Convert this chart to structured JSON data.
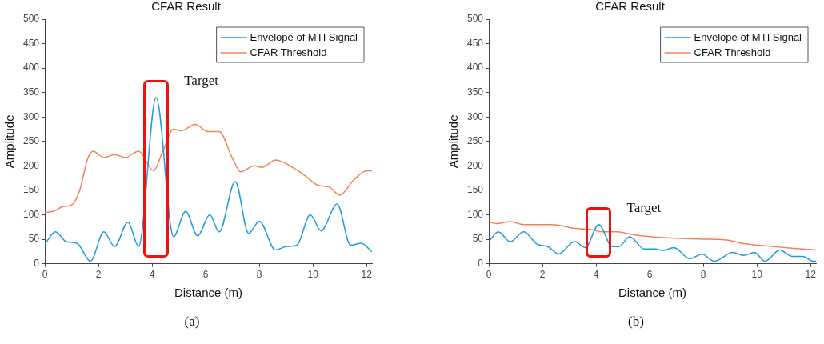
{
  "chart_data": [
    {
      "type": "line",
      "title": "CFAR Result",
      "xlabel": "Distance (m)",
      "ylabel": "Amplitude",
      "xlim": [
        0,
        12.2
      ],
      "xticks": [
        0,
        2,
        4,
        6,
        8,
        10,
        12
      ],
      "ylim": [
        0,
        500
      ],
      "yticks": [
        0,
        50,
        100,
        150,
        200,
        250,
        300,
        350,
        400,
        450,
        500
      ],
      "grid": false,
      "legend": "top right",
      "marker": "none",
      "line_style": "solid",
      "series": [
        {
          "name": "Envelope of MTI Signal",
          "color": "#1f9bd7",
          "x": [
            0,
            0.4,
            0.8,
            1.2,
            1.7,
            2.2,
            2.6,
            3.1,
            3.5,
            4.15,
            4.8,
            5.25,
            5.7,
            6.15,
            6.5,
            7.1,
            7.6,
            8.0,
            8.6,
            9.0,
            9.4,
            9.9,
            10.3,
            10.9,
            11.4,
            11.8,
            12.2
          ],
          "values": [
            40,
            65,
            45,
            42,
            5,
            65,
            35,
            85,
            35,
            340,
            55,
            107,
            57,
            100,
            65,
            168,
            62,
            87,
            28,
            35,
            38,
            100,
            67,
            122,
            38,
            42,
            24
          ]
        },
        {
          "name": "CFAR Threshold",
          "color": "#f4805a",
          "x": [
            0,
            0.3,
            0.7,
            1.0,
            1.3,
            1.6,
            1.8,
            2.2,
            2.6,
            3.0,
            3.5,
            4.05,
            4.4,
            4.8,
            5.1,
            5.6,
            6.1,
            6.5,
            7.0,
            7.3,
            7.8,
            8.1,
            8.6,
            9.3,
            9.7,
            10.2,
            10.6,
            11.0,
            11.5,
            12.0,
            12.2
          ],
          "values": [
            105,
            107,
            117,
            120,
            150,
            215,
            230,
            217,
            223,
            217,
            230,
            190,
            230,
            275,
            272,
            285,
            270,
            270,
            215,
            188,
            200,
            197,
            212,
            195,
            180,
            160,
            157,
            140,
            170,
            190,
            190
          ]
        }
      ],
      "annotations": [
        {
          "text": "Target",
          "x": 4.15,
          "y": 340
        },
        "(a)"
      ]
    },
    {
      "type": "line",
      "title": "CFAR Result",
      "xlabel": "Distance (m)",
      "ylabel": "Amplitude",
      "xlim": [
        0,
        12.2
      ],
      "xticks": [
        0,
        2,
        4,
        6,
        8,
        10,
        12
      ],
      "ylim": [
        0,
        500
      ],
      "yticks": [
        0,
        50,
        100,
        150,
        200,
        250,
        300,
        350,
        400,
        450,
        500
      ],
      "grid": false,
      "legend": "top right",
      "marker": "none",
      "line_style": "solid",
      "series": [
        {
          "name": "Envelope of MTI Signal",
          "color": "#1f9bd7",
          "x": [
            0,
            0.35,
            0.8,
            1.3,
            1.8,
            2.2,
            2.6,
            3.2,
            3.6,
            4.1,
            4.6,
            4.85,
            5.25,
            5.8,
            6.2,
            6.5,
            6.9,
            7.5,
            7.95,
            8.4,
            9.1,
            9.5,
            9.9,
            10.3,
            10.85,
            11.3,
            11.7,
            12.1,
            12.2
          ],
          "values": [
            45,
            65,
            45,
            65,
            40,
            35,
            20,
            45,
            33,
            80,
            35,
            35,
            55,
            30,
            30,
            27,
            33,
            10,
            20,
            5,
            23,
            17,
            23,
            5,
            28,
            15,
            15,
            5,
            5
          ]
        },
        {
          "name": "CFAR Threshold",
          "color": "#f4805a",
          "x": [
            0,
            0.3,
            0.8,
            1.3,
            2.3,
            2.7,
            3.2,
            3.8,
            4.2,
            4.8,
            5.3,
            6.1,
            7.0,
            8.0,
            8.8,
            9.5,
            10.4,
            11.2,
            12.2
          ],
          "values": [
            85,
            82,
            86,
            80,
            80,
            78,
            72,
            70,
            65,
            65,
            60,
            55,
            52,
            50,
            49,
            41,
            36,
            32,
            28
          ]
        }
      ],
      "annotations": [
        {
          "text": "Target",
          "x": 4.1,
          "y": 80
        },
        "(b)"
      ]
    }
  ]
}
